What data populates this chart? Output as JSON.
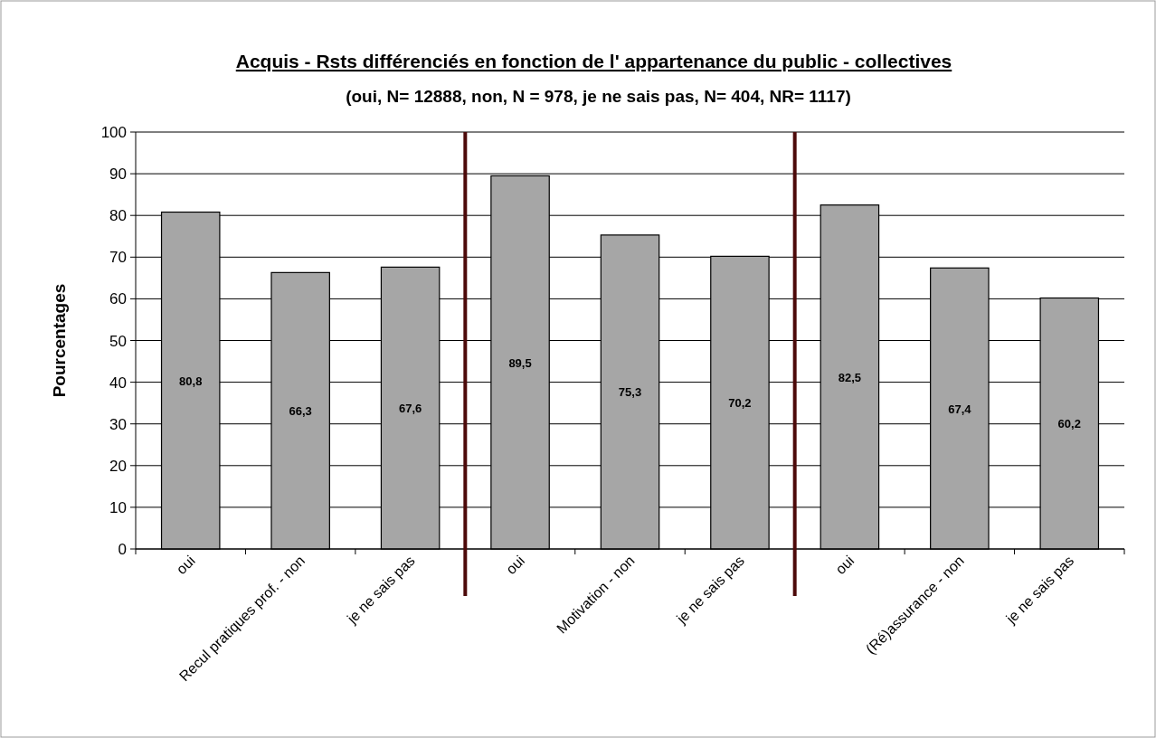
{
  "chart_data": {
    "type": "bar",
    "title": "Acquis -  Rsts différenciés en fonction de l' appartenance du public - collectives",
    "subtitle": "(oui, N= 12888, non, N = 978, je ne sais pas, N= 404, NR= 1117)",
    "ylabel": "Pourcentages",
    "categories": [
      "oui",
      "Recul pratiques prof. - non",
      "je ne sais pas",
      "oui",
      "Motivation - non",
      "je ne sais pas",
      "oui",
      "(Ré)assurance  - non",
      "je ne sais pas"
    ],
    "values": [
      80.8,
      66.3,
      67.6,
      89.5,
      75.3,
      70.2,
      82.5,
      67.4,
      60.2
    ],
    "value_labels": [
      "80,8",
      "66,3",
      "67,6",
      "89,5",
      "75,3",
      "70,2",
      "82,5",
      "67,4",
      "60,2"
    ],
    "color": "#a6a6a6",
    "ylim": [
      0,
      100
    ],
    "yticks": [
      0,
      10,
      20,
      30,
      40,
      50,
      60,
      70,
      80,
      90,
      100
    ],
    "grid": "y"
  }
}
